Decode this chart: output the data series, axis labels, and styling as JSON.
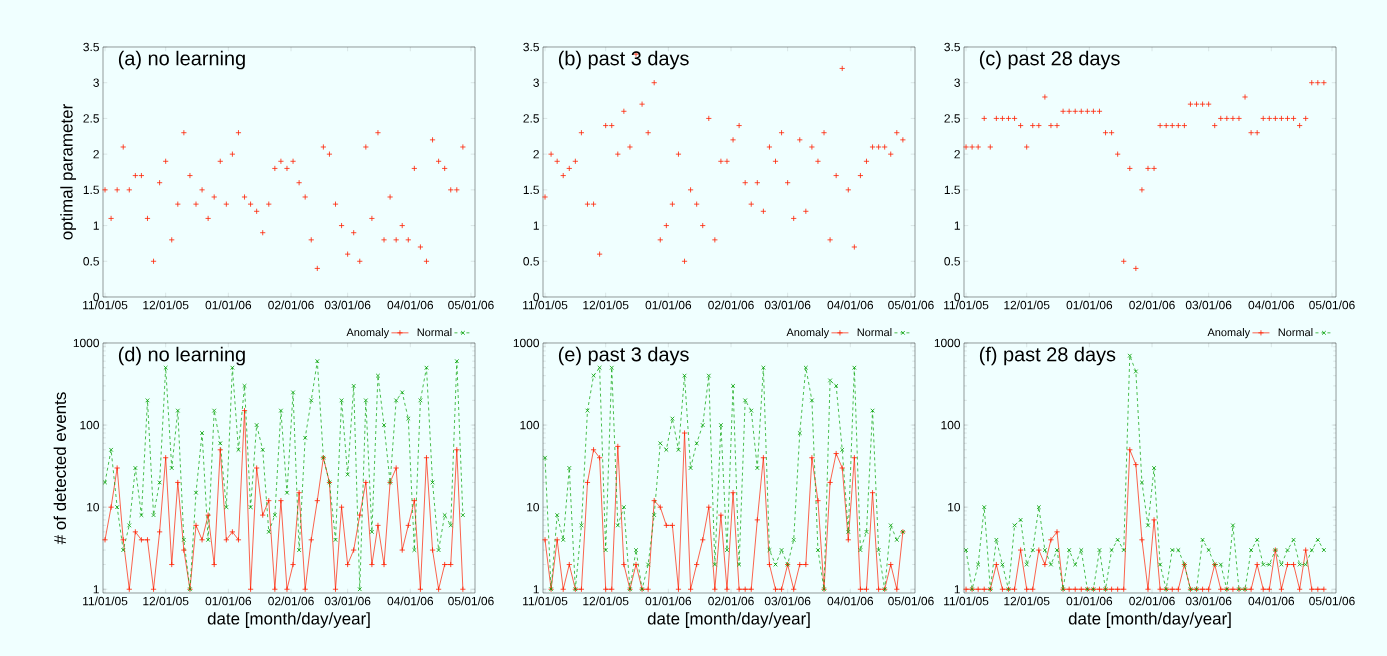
{
  "chart_data": [
    {
      "type": "scatter",
      "title": "(a) no learning",
      "ylabel": "optimal parameter",
      "xlim": [
        "2005-10-31",
        "2006-05-03"
      ],
      "ylim": [
        0,
        3.5
      ],
      "xticks": [
        {
          "value": "2005-11-01",
          "label": "11/01/05"
        },
        {
          "value": "2005-12-01",
          "label": "12/01/05"
        },
        {
          "value": "2006-01-01",
          "label": "01/01/06"
        },
        {
          "value": "2006-02-01",
          "label": "02/01/06"
        },
        {
          "value": "2006-03-01",
          "label": "03/01/06"
        },
        {
          "value": "2006-04-01",
          "label": "04/01/06"
        },
        {
          "value": "2006-05-01",
          "label": "05/01/06"
        }
      ],
      "yticks": [
        0,
        0.5,
        1,
        1.5,
        2,
        2.5,
        3,
        3.5
      ],
      "x": [
        "2005-11-01",
        "2005-11-04",
        "2005-11-07",
        "2005-11-10",
        "2005-11-13",
        "2005-11-16",
        "2005-11-19",
        "2005-11-22",
        "2005-11-25",
        "2005-11-28",
        "2005-12-01",
        "2005-12-04",
        "2005-12-07",
        "2005-12-10",
        "2005-12-13",
        "2005-12-16",
        "2005-12-19",
        "2005-12-22",
        "2005-12-25",
        "2005-12-28",
        "2005-12-31",
        "2006-01-03",
        "2006-01-06",
        "2006-01-09",
        "2006-01-12",
        "2006-01-15",
        "2006-01-18",
        "2006-01-21",
        "2006-01-24",
        "2006-01-27",
        "2006-01-30",
        "2006-02-02",
        "2006-02-05",
        "2006-02-08",
        "2006-02-11",
        "2006-02-14",
        "2006-02-17",
        "2006-02-20",
        "2006-02-23",
        "2006-02-26",
        "2006-03-01",
        "2006-03-04",
        "2006-03-07",
        "2006-03-10",
        "2006-03-13",
        "2006-03-16",
        "2006-03-19",
        "2006-03-22",
        "2006-03-25",
        "2006-03-28",
        "2006-03-31",
        "2006-04-03",
        "2006-04-06",
        "2006-04-09",
        "2006-04-12",
        "2006-04-15",
        "2006-04-18",
        "2006-04-21",
        "2006-04-24",
        "2006-04-27"
      ],
      "series": [
        {
          "color": "#ff2000",
          "marker": "cross",
          "values": [
            1.5,
            1.1,
            1.5,
            2.1,
            1.5,
            1.7,
            1.7,
            1.1,
            0.5,
            1.6,
            1.9,
            0.8,
            1.3,
            2.3,
            1.7,
            1.3,
            1.5,
            1.1,
            1.4,
            1.9,
            1.3,
            2.0,
            2.3,
            1.4,
            1.3,
            1.2,
            0.9,
            1.3,
            1.8,
            1.9,
            1.8,
            1.9,
            1.6,
            1.4,
            0.8,
            0.4,
            2.1,
            2.0,
            1.3,
            1.0,
            0.6,
            0.9,
            0.5,
            2.1,
            1.1,
            2.3,
            0.8,
            1.4,
            0.8,
            1.0,
            0.8,
            1.8,
            0.7,
            0.5,
            2.2,
            1.9,
            1.8,
            1.5,
            1.5,
            2.1
          ]
        }
      ]
    },
    {
      "type": "scatter",
      "title": "(b) past 3 days",
      "xlim": [
        "2005-10-31",
        "2006-05-03"
      ],
      "ylim": [
        0,
        3.5
      ],
      "xticks": [
        {
          "value": "2005-11-01",
          "label": "11/01/05"
        },
        {
          "value": "2005-12-01",
          "label": "12/01/05"
        },
        {
          "value": "2006-01-01",
          "label": "01/01/06"
        },
        {
          "value": "2006-02-01",
          "label": "02/01/06"
        },
        {
          "value": "2006-03-01",
          "label": "03/01/06"
        },
        {
          "value": "2006-04-01",
          "label": "04/01/06"
        },
        {
          "value": "2006-05-01",
          "label": "05/01/06"
        }
      ],
      "yticks": [
        0,
        0.5,
        1,
        1.5,
        2,
        2.5,
        3,
        3.5
      ],
      "x": [
        "2005-11-01",
        "2005-11-04",
        "2005-11-07",
        "2005-11-10",
        "2005-11-13",
        "2005-11-16",
        "2005-11-19",
        "2005-11-22",
        "2005-11-25",
        "2005-11-28",
        "2005-12-01",
        "2005-12-04",
        "2005-12-07",
        "2005-12-10",
        "2005-12-13",
        "2005-12-16",
        "2005-12-19",
        "2005-12-22",
        "2005-12-25",
        "2005-12-28",
        "2005-12-31",
        "2006-01-03",
        "2006-01-06",
        "2006-01-09",
        "2006-01-12",
        "2006-01-15",
        "2006-01-18",
        "2006-01-21",
        "2006-01-24",
        "2006-01-27",
        "2006-01-30",
        "2006-02-02",
        "2006-02-05",
        "2006-02-08",
        "2006-02-11",
        "2006-02-14",
        "2006-02-17",
        "2006-02-20",
        "2006-02-23",
        "2006-02-26",
        "2006-03-01",
        "2006-03-04",
        "2006-03-07",
        "2006-03-10",
        "2006-03-13",
        "2006-03-16",
        "2006-03-19",
        "2006-03-22",
        "2006-03-25",
        "2006-03-28",
        "2006-03-31",
        "2006-04-03",
        "2006-04-06",
        "2006-04-09",
        "2006-04-12",
        "2006-04-15",
        "2006-04-18",
        "2006-04-21",
        "2006-04-24",
        "2006-04-27"
      ],
      "series": [
        {
          "color": "#ff2000",
          "marker": "cross",
          "values": [
            1.4,
            2.0,
            1.9,
            1.7,
            1.8,
            1.9,
            2.3,
            1.3,
            1.3,
            0.6,
            2.4,
            2.4,
            2.0,
            2.6,
            2.1,
            3.4,
            2.7,
            2.3,
            3.0,
            0.8,
            1.0,
            1.3,
            2.0,
            0.5,
            1.5,
            1.3,
            1.0,
            2.5,
            0.8,
            1.9,
            1.9,
            2.2,
            2.4,
            1.6,
            1.3,
            1.6,
            1.2,
            2.1,
            1.9,
            2.3,
            1.6,
            1.1,
            2.2,
            1.2,
            2.1,
            1.9,
            2.3,
            0.8,
            1.7,
            3.2,
            1.5,
            0.7,
            1.7,
            1.9,
            2.1,
            2.1,
            2.1,
            2.0,
            2.3,
            2.2
          ]
        }
      ]
    },
    {
      "type": "scatter",
      "title": "(c) past 28 days",
      "xlim": [
        "2005-10-31",
        "2006-05-03"
      ],
      "ylim": [
        0,
        3.5
      ],
      "xticks": [
        {
          "value": "2005-11-01",
          "label": "11/01/05"
        },
        {
          "value": "2005-12-01",
          "label": "12/01/05"
        },
        {
          "value": "2006-01-01",
          "label": "01/01/06"
        },
        {
          "value": "2006-02-01",
          "label": "02/01/06"
        },
        {
          "value": "2006-03-01",
          "label": "03/01/06"
        },
        {
          "value": "2006-04-01",
          "label": "04/01/06"
        },
        {
          "value": "2006-05-01",
          "label": "05/01/06"
        }
      ],
      "yticks": [
        0,
        0.5,
        1,
        1.5,
        2,
        2.5,
        3,
        3.5
      ],
      "x": [
        "2005-11-01",
        "2005-11-04",
        "2005-11-07",
        "2005-11-10",
        "2005-11-13",
        "2005-11-16",
        "2005-11-19",
        "2005-11-22",
        "2005-11-25",
        "2005-11-28",
        "2005-12-01",
        "2005-12-04",
        "2005-12-07",
        "2005-12-10",
        "2005-12-13",
        "2005-12-16",
        "2005-12-19",
        "2005-12-22",
        "2005-12-25",
        "2005-12-28",
        "2005-12-31",
        "2006-01-03",
        "2006-01-06",
        "2006-01-09",
        "2006-01-12",
        "2006-01-15",
        "2006-01-18",
        "2006-01-21",
        "2006-01-24",
        "2006-01-27",
        "2006-01-30",
        "2006-02-02",
        "2006-02-05",
        "2006-02-08",
        "2006-02-11",
        "2006-02-14",
        "2006-02-17",
        "2006-02-20",
        "2006-02-23",
        "2006-02-26",
        "2006-03-01",
        "2006-03-04",
        "2006-03-07",
        "2006-03-10",
        "2006-03-13",
        "2006-03-16",
        "2006-03-19",
        "2006-03-22",
        "2006-03-25",
        "2006-03-28",
        "2006-03-31",
        "2006-04-03",
        "2006-04-06",
        "2006-04-09",
        "2006-04-12",
        "2006-04-15",
        "2006-04-18",
        "2006-04-21",
        "2006-04-24",
        "2006-04-27"
      ],
      "series": [
        {
          "color": "#ff2000",
          "marker": "cross",
          "values": [
            2.1,
            2.1,
            2.1,
            2.5,
            2.1,
            2.5,
            2.5,
            2.5,
            2.5,
            2.4,
            2.1,
            2.4,
            2.4,
            2.8,
            2.4,
            2.4,
            2.6,
            2.6,
            2.6,
            2.6,
            2.6,
            2.6,
            2.6,
            2.3,
            2.3,
            2.0,
            0.5,
            1.8,
            0.4,
            1.5,
            1.8,
            1.8,
            2.4,
            2.4,
            2.4,
            2.4,
            2.4,
            2.7,
            2.7,
            2.7,
            2.7,
            2.4,
            2.5,
            2.5,
            2.5,
            2.5,
            2.8,
            2.3,
            2.3,
            2.5,
            2.5,
            2.5,
            2.5,
            2.5,
            2.5,
            2.4,
            2.5,
            3.0,
            3.0,
            3.0
          ]
        }
      ]
    },
    {
      "type": "line",
      "title": "(d) no learning",
      "xlabel": "date [month/day/year]",
      "ylabel": "# of detected events",
      "log": true,
      "legend": "top right",
      "xlim": [
        "2005-10-31",
        "2006-05-03"
      ],
      "ylim": [
        0.9,
        1000
      ],
      "xticks": [
        {
          "value": "2005-11-01",
          "label": "11/01/05"
        },
        {
          "value": "2005-12-01",
          "label": "12/01/05"
        },
        {
          "value": "2006-01-01",
          "label": "01/01/06"
        },
        {
          "value": "2006-02-01",
          "label": "02/01/06"
        },
        {
          "value": "2006-03-01",
          "label": "03/01/06"
        },
        {
          "value": "2006-04-01",
          "label": "04/01/06"
        },
        {
          "value": "2006-05-01",
          "label": "05/01/06"
        }
      ],
      "yticks": [
        1,
        10,
        100,
        1000
      ],
      "x": [
        "2005-11-01",
        "2005-11-04",
        "2005-11-07",
        "2005-11-10",
        "2005-11-13",
        "2005-11-16",
        "2005-11-19",
        "2005-11-22",
        "2005-11-25",
        "2005-11-28",
        "2005-12-01",
        "2005-12-04",
        "2005-12-07",
        "2005-12-10",
        "2005-12-13",
        "2005-12-16",
        "2005-12-19",
        "2005-12-22",
        "2005-12-25",
        "2005-12-28",
        "2005-12-31",
        "2006-01-03",
        "2006-01-06",
        "2006-01-09",
        "2006-01-12",
        "2006-01-15",
        "2006-01-18",
        "2006-01-21",
        "2006-01-24",
        "2006-01-27",
        "2006-01-30",
        "2006-02-02",
        "2006-02-05",
        "2006-02-08",
        "2006-02-11",
        "2006-02-14",
        "2006-02-17",
        "2006-02-20",
        "2006-02-23",
        "2006-02-26",
        "2006-03-01",
        "2006-03-04",
        "2006-03-07",
        "2006-03-10",
        "2006-03-13",
        "2006-03-16",
        "2006-03-19",
        "2006-03-22",
        "2006-03-25",
        "2006-03-28",
        "2006-03-31",
        "2006-04-03",
        "2006-04-06",
        "2006-04-09",
        "2006-04-12",
        "2006-04-15",
        "2006-04-18",
        "2006-04-21",
        "2006-04-24",
        "2006-04-27"
      ],
      "series": [
        {
          "name": "Anomaly",
          "color": "#ff2000",
          "marker": "cross",
          "line_style": "solid",
          "values": [
            4,
            10,
            30,
            4,
            1,
            5,
            4,
            4,
            1,
            5,
            40,
            2,
            20,
            3,
            1,
            6,
            4,
            8,
            2,
            50,
            4,
            5,
            4,
            150,
            1,
            30,
            8,
            12,
            1,
            12,
            1,
            2,
            15,
            1,
            4,
            12,
            40,
            20,
            1,
            10,
            2,
            3,
            8,
            20,
            2,
            6,
            2,
            20,
            30,
            3,
            6,
            12,
            1,
            40,
            3,
            1,
            2,
            2,
            50,
            1
          ]
        },
        {
          "name": "Normal",
          "color": "#00a000",
          "marker": "cross",
          "line_style": "dashed",
          "values": [
            20,
            50,
            10,
            3,
            6,
            30,
            8,
            200,
            8,
            20,
            500,
            30,
            150,
            4,
            1,
            15,
            80,
            4,
            150,
            60,
            10,
            500,
            50,
            300,
            10,
            100,
            50,
            5,
            8,
            150,
            15,
            250,
            3,
            70,
            200,
            600,
            40,
            20,
            4,
            200,
            25,
            300,
            1,
            200,
            5,
            400,
            100,
            20,
            200,
            250,
            120,
            3,
            200,
            500,
            20,
            3,
            8,
            6,
            600,
            8
          ]
        }
      ]
    },
    {
      "type": "line",
      "title": "(e) past 3 days",
      "xlabel": "date [month/day/year]",
      "log": true,
      "legend": "top right",
      "xlim": [
        "2005-10-31",
        "2006-05-03"
      ],
      "ylim": [
        0.9,
        1000
      ],
      "xticks": [
        {
          "value": "2005-11-01",
          "label": "11/01/05"
        },
        {
          "value": "2005-12-01",
          "label": "12/01/05"
        },
        {
          "value": "2006-01-01",
          "label": "01/01/06"
        },
        {
          "value": "2006-02-01",
          "label": "02/01/06"
        },
        {
          "value": "2006-03-01",
          "label": "03/01/06"
        },
        {
          "value": "2006-04-01",
          "label": "04/01/06"
        },
        {
          "value": "2006-05-01",
          "label": "05/01/06"
        }
      ],
      "yticks": [
        1,
        10,
        100,
        1000
      ],
      "x": [
        "2005-11-01",
        "2005-11-04",
        "2005-11-07",
        "2005-11-10",
        "2005-11-13",
        "2005-11-16",
        "2005-11-19",
        "2005-11-22",
        "2005-11-25",
        "2005-11-28",
        "2005-12-01",
        "2005-12-04",
        "2005-12-07",
        "2005-12-10",
        "2005-12-13",
        "2005-12-16",
        "2005-12-19",
        "2005-12-22",
        "2005-12-25",
        "2005-12-28",
        "2005-12-31",
        "2006-01-03",
        "2006-01-06",
        "2006-01-09",
        "2006-01-12",
        "2006-01-15",
        "2006-01-18",
        "2006-01-21",
        "2006-01-24",
        "2006-01-27",
        "2006-01-30",
        "2006-02-02",
        "2006-02-05",
        "2006-02-08",
        "2006-02-11",
        "2006-02-14",
        "2006-02-17",
        "2006-02-20",
        "2006-02-23",
        "2006-02-26",
        "2006-03-01",
        "2006-03-04",
        "2006-03-07",
        "2006-03-10",
        "2006-03-13",
        "2006-03-16",
        "2006-03-19",
        "2006-03-22",
        "2006-03-25",
        "2006-03-28",
        "2006-03-31",
        "2006-04-03",
        "2006-04-06",
        "2006-04-09",
        "2006-04-12",
        "2006-04-15",
        "2006-04-18",
        "2006-04-21",
        "2006-04-24",
        "2006-04-27"
      ],
      "series": [
        {
          "name": "Anomaly",
          "color": "#ff2000",
          "marker": "cross",
          "line_style": "solid",
          "values": [
            4,
            1,
            4,
            1,
            2,
            1,
            1,
            20,
            50,
            40,
            1,
            1,
            55,
            2,
            1,
            2,
            1,
            1,
            12,
            10,
            6,
            6,
            1,
            80,
            1,
            2,
            4,
            10,
            1,
            8,
            1,
            15,
            1,
            1,
            1,
            7,
            40,
            2,
            1,
            1,
            2,
            1,
            2,
            2,
            40,
            12,
            1,
            20,
            45,
            30,
            4,
            40,
            1,
            1,
            15,
            1,
            1,
            2,
            1,
            5
          ]
        },
        {
          "name": "Normal",
          "color": "#00a000",
          "marker": "cross",
          "line_style": "dashed",
          "values": [
            40,
            1,
            8,
            4,
            30,
            1,
            6,
            150,
            400,
            500,
            3,
            500,
            6,
            10,
            1,
            3,
            1,
            2,
            8,
            60,
            50,
            120,
            50,
            400,
            30,
            60,
            100,
            400,
            2,
            100,
            3,
            300,
            2,
            200,
            150,
            30,
            500,
            3,
            2,
            3,
            2,
            4,
            80,
            500,
            200,
            3,
            1,
            350,
            300,
            50,
            5,
            500,
            3,
            5,
            150,
            3,
            1,
            6,
            4,
            5
          ]
        }
      ]
    },
    {
      "type": "line",
      "title": "(f) past 28 days",
      "xlabel": "date [month/day/year]",
      "log": true,
      "legend": "top right",
      "xlim": [
        "2005-10-31",
        "2006-05-03"
      ],
      "ylim": [
        0.9,
        1000
      ],
      "xticks": [
        {
          "value": "2005-11-01",
          "label": "11/01/05"
        },
        {
          "value": "2005-12-01",
          "label": "12/01/05"
        },
        {
          "value": "2006-01-01",
          "label": "01/01/06"
        },
        {
          "value": "2006-02-01",
          "label": "02/01/06"
        },
        {
          "value": "2006-03-01",
          "label": "03/01/06"
        },
        {
          "value": "2006-04-01",
          "label": "04/01/06"
        },
        {
          "value": "2006-05-01",
          "label": "05/01/06"
        }
      ],
      "yticks": [
        1,
        10,
        100,
        1000
      ],
      "x": [
        "2005-11-01",
        "2005-11-04",
        "2005-11-07",
        "2005-11-10",
        "2005-11-13",
        "2005-11-16",
        "2005-11-19",
        "2005-11-22",
        "2005-11-25",
        "2005-11-28",
        "2005-12-01",
        "2005-12-04",
        "2005-12-07",
        "2005-12-10",
        "2005-12-13",
        "2005-12-16",
        "2005-12-19",
        "2005-12-22",
        "2005-12-25",
        "2005-12-28",
        "2005-12-31",
        "2006-01-03",
        "2006-01-06",
        "2006-01-09",
        "2006-01-12",
        "2006-01-15",
        "2006-01-18",
        "2006-01-21",
        "2006-01-24",
        "2006-01-27",
        "2006-01-30",
        "2006-02-02",
        "2006-02-05",
        "2006-02-08",
        "2006-02-11",
        "2006-02-14",
        "2006-02-17",
        "2006-02-20",
        "2006-02-23",
        "2006-02-26",
        "2006-03-01",
        "2006-03-04",
        "2006-03-07",
        "2006-03-10",
        "2006-03-13",
        "2006-03-16",
        "2006-03-19",
        "2006-03-22",
        "2006-03-25",
        "2006-03-28",
        "2006-03-31",
        "2006-04-03",
        "2006-04-06",
        "2006-04-09",
        "2006-04-12",
        "2006-04-15",
        "2006-04-18",
        "2006-04-21",
        "2006-04-24",
        "2006-04-27"
      ],
      "series": [
        {
          "name": "Anomaly",
          "color": "#ff2000",
          "marker": "cross",
          "line_style": "solid",
          "values": [
            1,
            1,
            1,
            1,
            1,
            2,
            1,
            1,
            1,
            3,
            1,
            1,
            3,
            2,
            4,
            5,
            1,
            1,
            1,
            1,
            1,
            1,
            1,
            1,
            1,
            1,
            1,
            50,
            33,
            4,
            1,
            7,
            1,
            1,
            1,
            1,
            2,
            1,
            1,
            1,
            1,
            2,
            1,
            1,
            1,
            1,
            1,
            1,
            2,
            1,
            1,
            3,
            1,
            2,
            2,
            1,
            3,
            1,
            1,
            1
          ]
        },
        {
          "name": "Normal",
          "color": "#00a000",
          "marker": "cross",
          "line_style": "dashed",
          "values": [
            3,
            1,
            2,
            10,
            1,
            4,
            2,
            1,
            6,
            7,
            2,
            3,
            10,
            3,
            2,
            3,
            1,
            3,
            2,
            3,
            1,
            1,
            3,
            1,
            3,
            4,
            3,
            700,
            450,
            20,
            6,
            30,
            2,
            1,
            3,
            3,
            2,
            1,
            1,
            4,
            3,
            2,
            2,
            1,
            6,
            1,
            1,
            3,
            4,
            2,
            2,
            3,
            2,
            3,
            4,
            2,
            2,
            3,
            4,
            3
          ]
        }
      ]
    }
  ]
}
